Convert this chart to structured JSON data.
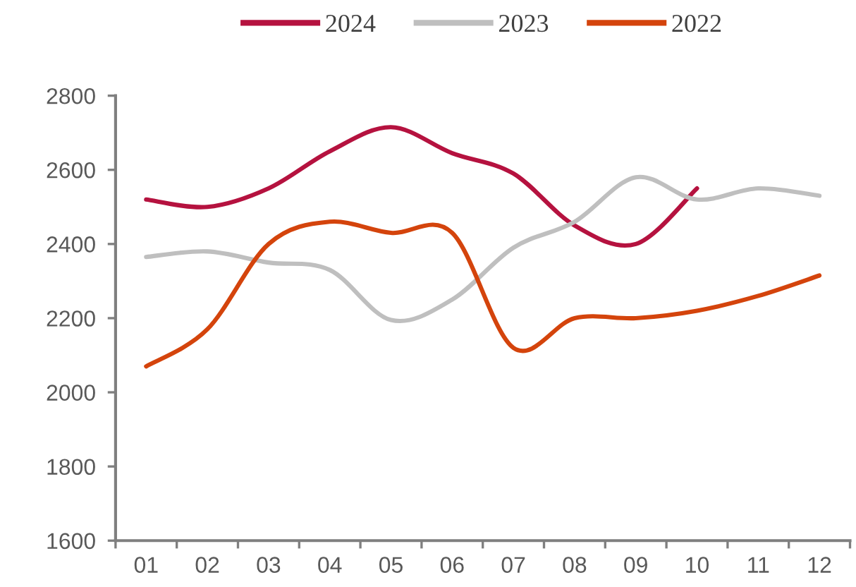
{
  "chart_data": {
    "type": "line",
    "categories": [
      "01",
      "02",
      "03",
      "04",
      "05",
      "06",
      "07",
      "08",
      "09",
      "10",
      "11",
      "12"
    ],
    "series": [
      {
        "name": "2024",
        "color": "#b5123f",
        "values": [
          2520,
          2500,
          2550,
          2650,
          2715,
          2645,
          2590,
          2450,
          2400,
          2550,
          null,
          null
        ]
      },
      {
        "name": "2023",
        "color": "#bfbfbf",
        "values": [
          2365,
          2380,
          2350,
          2330,
          2195,
          2250,
          2390,
          2460,
          2580,
          2520,
          2550,
          2530
        ]
      },
      {
        "name": "2022",
        "color": "#d4440c",
        "values": [
          2070,
          2170,
          2400,
          2460,
          2430,
          2430,
          2120,
          2200,
          2200,
          2220,
          2260,
          2315
        ]
      }
    ],
    "ylim": [
      1600,
      2800
    ],
    "yticks": [
      1600,
      1800,
      2000,
      2200,
      2400,
      2600,
      2800
    ],
    "legend": "top",
    "grid": false
  }
}
